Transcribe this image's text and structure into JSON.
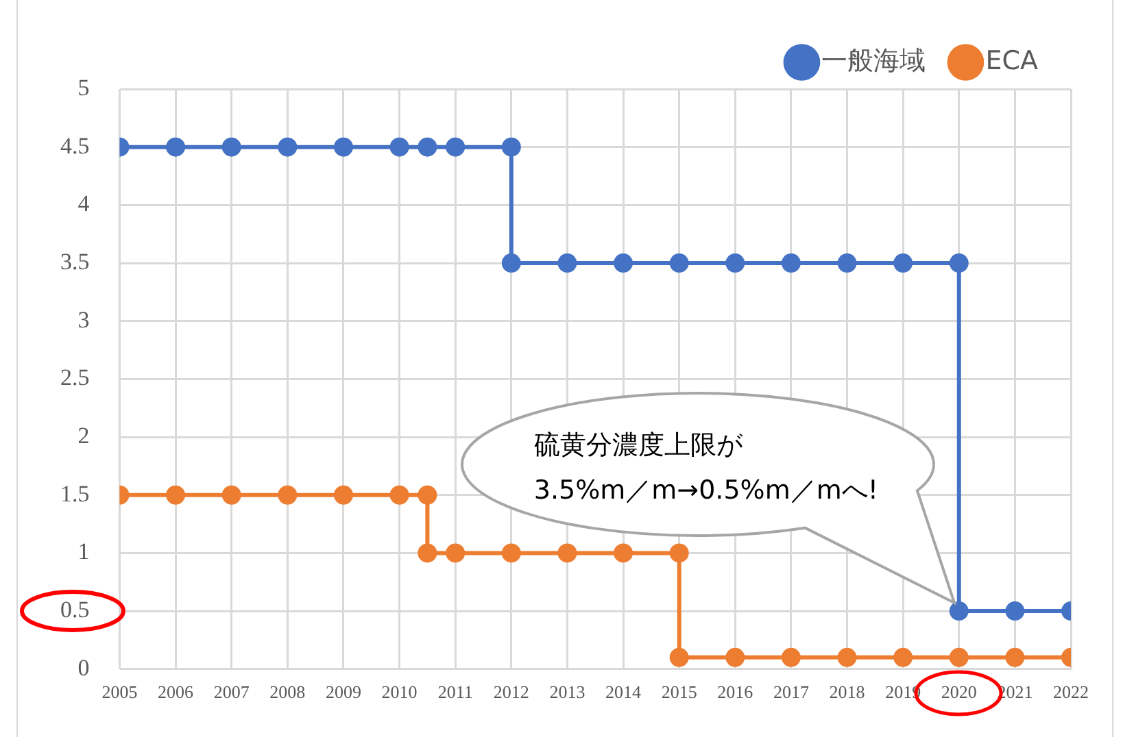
{
  "chart_data": {
    "type": "line",
    "xlim": [
      2005,
      2022
    ],
    "xticks": [
      2005,
      2006,
      2007,
      2008,
      2009,
      2010,
      2011,
      2012,
      2013,
      2014,
      2015,
      2016,
      2017,
      2018,
      2019,
      2020,
      2021,
      2022
    ],
    "ylim": [
      0,
      5
    ],
    "yticks": [
      0,
      0.5,
      1,
      1.5,
      2,
      2.5,
      3,
      3.5,
      4,
      4.5,
      5
    ],
    "grid": true,
    "legend": "top right",
    "marker": "circle",
    "line_style": "solid",
    "series": [
      {
        "name": "一般海域",
        "color": "#4472c4",
        "x": [
          2005,
          2006,
          2007,
          2008,
          2009,
          2010,
          2010.5,
          2011,
          2012,
          2012,
          2013,
          2014,
          2015,
          2016,
          2017,
          2018,
          2019,
          2020,
          2020,
          2021,
          2022
        ],
        "values": [
          4.5,
          4.5,
          4.5,
          4.5,
          4.5,
          4.5,
          4.5,
          4.5,
          4.5,
          3.5,
          3.5,
          3.5,
          3.5,
          3.5,
          3.5,
          3.5,
          3.5,
          3.5,
          0.5,
          0.5,
          0.5
        ]
      },
      {
        "name": "ECA",
        "color": "#ed7d31",
        "x": [
          2005,
          2006,
          2007,
          2008,
          2009,
          2010,
          2010.5,
          2010.5,
          2011,
          2012,
          2013,
          2014,
          2015,
          2015,
          2016,
          2017,
          2018,
          2019,
          2020,
          2021,
          2022
        ],
        "values": [
          1.5,
          1.5,
          1.5,
          1.5,
          1.5,
          1.5,
          1.5,
          1,
          1,
          1,
          1,
          1,
          1,
          0.1,
          0.1,
          0.1,
          0.1,
          0.1,
          0.1,
          0.1,
          0.1
        ]
      }
    ],
    "annotations": [
      {
        "text": "硫黄分濃度上限が\n3.5%m／m→0.5%m／mへ!",
        "x": 2020,
        "y": 0.5
      }
    ]
  }
}
